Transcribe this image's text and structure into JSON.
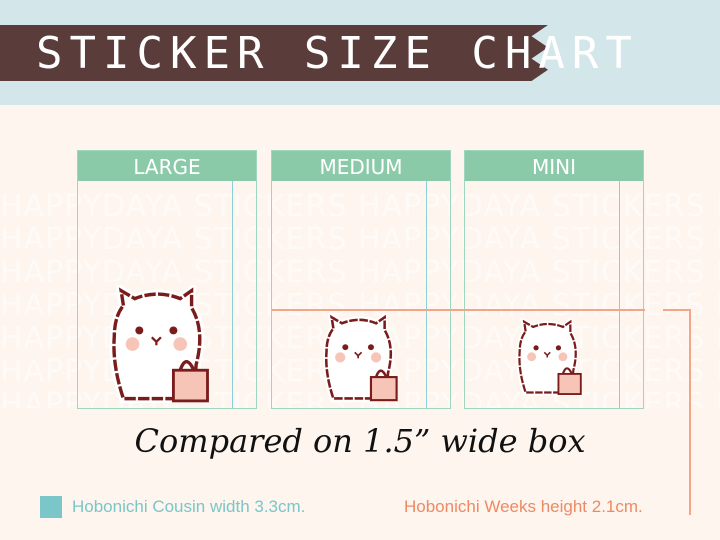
{
  "title": "STICKER SIZE CHART",
  "watermark": "HAPPYDAYA STICKERS",
  "panels": [
    {
      "label": "LARGE"
    },
    {
      "label": "MEDIUM"
    },
    {
      "label": "MINI"
    }
  ],
  "caption": "Compared on 1.5” wide box",
  "legend": {
    "cousin": "Hobonichi Cousin width 3.3cm.",
    "weeks": "Hobonichi Weeks height 2.1cm."
  },
  "colors": {
    "band": "#d3e7ea",
    "ribbon": "#5a3c3a",
    "panel_header": "#8bcaa8",
    "cousin": "#7ac6c8",
    "weeks": "#ee8a63"
  }
}
